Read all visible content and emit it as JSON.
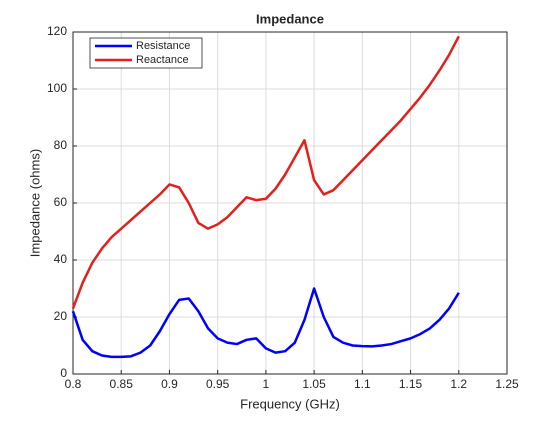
{
  "chart_data": {
    "type": "line",
    "title": "Impedance",
    "x_label": "Frequency (GHz)",
    "y_label": "Impedance (ohms)",
    "x": [
      0.8,
      0.81,
      0.82,
      0.83,
      0.84,
      0.85,
      0.86,
      0.87,
      0.88,
      0.89,
      0.9,
      0.91,
      0.92,
      0.93,
      0.94,
      0.95,
      0.96,
      0.97,
      0.98,
      0.99,
      1.0,
      1.01,
      1.02,
      1.03,
      1.04,
      1.05,
      1.06,
      1.07,
      1.08,
      1.09,
      1.1,
      1.11,
      1.12,
      1.13,
      1.14,
      1.15,
      1.16,
      1.17,
      1.18,
      1.19,
      1.2
    ],
    "series": [
      {
        "name": "Resistance",
        "color": "#0000ff",
        "values": [
          22,
          12,
          8,
          6.5,
          6,
          6,
          6.2,
          7.5,
          10,
          15,
          21,
          26,
          26.5,
          22,
          16,
          12.5,
          11,
          10.5,
          12,
          12.5,
          9,
          7.5,
          8,
          11,
          19,
          30,
          20,
          13,
          11,
          10,
          9.8,
          9.7,
          10,
          10.5,
          11.5,
          12.5,
          14,
          16,
          19,
          23,
          28.5
        ]
      },
      {
        "name": "Reactance",
        "color": "#e3201b",
        "values": [
          23,
          32,
          39,
          44,
          48,
          51,
          54,
          57,
          60,
          63,
          66.5,
          65.5,
          60,
          53,
          51,
          52.5,
          55,
          58.5,
          62,
          61,
          61.5,
          65,
          70,
          76,
          82,
          68,
          63,
          64.5,
          68,
          71.5,
          75,
          78.5,
          82,
          85.5,
          89,
          93,
          97,
          101.5,
          106.5,
          112,
          118.5
        ]
      }
    ],
    "xlim": [
      0.8,
      1.25
    ],
    "xticks": [
      0.8,
      0.85,
      0.9,
      0.95,
      1,
      1.05,
      1.1,
      1.15,
      1.2,
      1.25
    ],
    "ylim": [
      0,
      120
    ],
    "yticks": [
      0,
      20,
      40,
      60,
      80,
      100,
      120
    ],
    "grid": true,
    "legend_position": "upper-left"
  }
}
